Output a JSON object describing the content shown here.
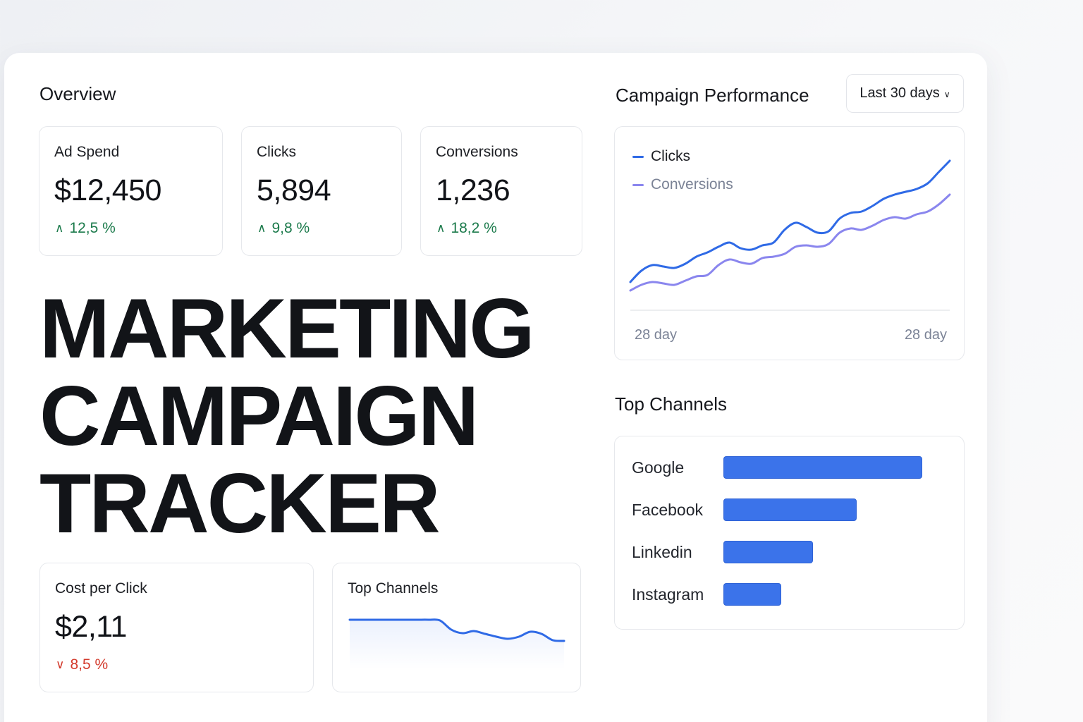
{
  "overview": {
    "title": "Overview",
    "kpis": [
      {
        "label": "Ad Spend",
        "value": "$12,450",
        "delta": "12,5 %",
        "direction": "up",
        "arrow": "∧"
      },
      {
        "label": "Clicks",
        "value": "5,894",
        "delta": "9,8 %",
        "direction": "up",
        "arrow": "∧"
      },
      {
        "label": "Conversions",
        "value": "1,236",
        "delta": "18,2 %",
        "direction": "up",
        "arrow": "∧"
      }
    ]
  },
  "hero": {
    "lines": [
      "MARKETING",
      "CAMPAIGN",
      "TRACKER"
    ]
  },
  "cpc": {
    "label": "Cost per Click",
    "value": "$2,11",
    "delta": "8,5 %",
    "direction": "down",
    "arrow": "∨"
  },
  "mini_channels": {
    "title": "Top Channels"
  },
  "performance": {
    "title": "Campaign Performance",
    "range_label": "Last 30 days",
    "x_start_label": "28 day",
    "x_end_label": "28 day"
  },
  "top_channels": {
    "title": "Top Channels"
  },
  "colors": {
    "accent_blue": "#2f6ae6",
    "accent_purple": "#8a86ee",
    "positive": "#1b7a4b",
    "negative": "#d33a2c",
    "bar": "#3b73ea"
  },
  "chart_data": [
    {
      "type": "line",
      "title": "Campaign Performance",
      "x": [
        1,
        2,
        3,
        4,
        5,
        6,
        7,
        8,
        9,
        10,
        11,
        12,
        13,
        14,
        15,
        16,
        17,
        18,
        19,
        20,
        21,
        22,
        23,
        24,
        25,
        26,
        27,
        28,
        29,
        30
      ],
      "series": [
        {
          "name": "Clicks",
          "color": "#2f6ae6",
          "values": [
            10,
            18,
            22,
            21,
            20,
            23,
            28,
            31,
            35,
            38,
            34,
            33,
            36,
            38,
            47,
            52,
            49,
            45,
            46,
            55,
            59,
            60,
            64,
            69,
            72,
            74,
            76,
            80,
            88,
            96
          ]
        },
        {
          "name": "Conversions",
          "color": "#8a86ee",
          "values": [
            4,
            8,
            10,
            9,
            8,
            11,
            14,
            15,
            22,
            26,
            24,
            23,
            27,
            28,
            30,
            35,
            36,
            35,
            37,
            45,
            48,
            47,
            50,
            54,
            56,
            55,
            58,
            60,
            65,
            72
          ]
        }
      ],
      "xlabel": "",
      "ylabel": "",
      "x_tick_labels": [
        "28 day",
        "28 day"
      ],
      "ylim": [
        0,
        100
      ],
      "legend": "top-left",
      "grid": false
    },
    {
      "type": "bar",
      "orientation": "horizontal",
      "title": "Top Channels",
      "categories": [
        "Google",
        "Facebook",
        "Linkedin",
        "Instagram"
      ],
      "values": [
        100,
        67,
        45,
        29
      ],
      "color": "#3b73ea"
    },
    {
      "type": "line",
      "title": "Top Channels",
      "x": [
        1,
        2,
        3,
        4,
        5,
        6,
        7,
        8,
        9,
        10,
        11,
        12,
        13,
        14,
        15,
        16,
        17,
        18,
        19,
        20
      ],
      "series": [
        {
          "values": [
            100,
            100,
            100,
            100,
            100,
            100,
            100,
            100,
            99,
            86,
            81,
            84,
            80,
            76,
            73,
            76,
            83,
            80,
            71,
            70
          ]
        }
      ],
      "ylim": [
        50,
        110
      ],
      "grid": false
    }
  ]
}
